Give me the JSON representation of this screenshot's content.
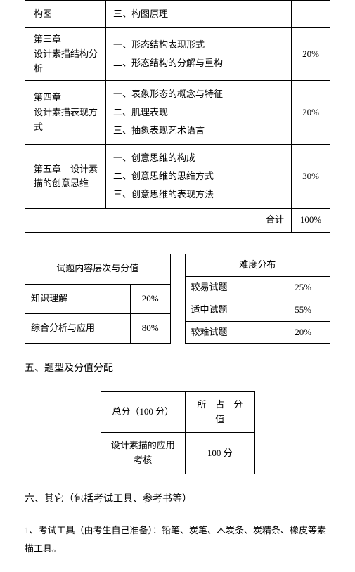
{
  "chapterTable": {
    "rows": [
      {
        "chapter": "构图",
        "content": "三、构图原理",
        "pct": ""
      },
      {
        "chapter": "第三章\n设计素描结构分析",
        "content": "一、形态结构表现形式\n二、形态结构的分解与重构",
        "pct": "20%"
      },
      {
        "chapter": "第四章\n设计素描表现方式",
        "content": "一、表象形态的概念与特征\n二、肌理表现\n三、抽象表现艺术语言",
        "pct": "20%"
      },
      {
        "chapter": "第五章　设计素描的创意思维",
        "content": "一、创意思维的构成\n二、创意思维的思维方式\n三、创意思维的表现方法",
        "pct": "30%"
      }
    ],
    "totalLabel": "合计",
    "totalValue": "100%"
  },
  "levelTable": {
    "header": "试题内容层次与分值",
    "rows": [
      {
        "label": "知识理解",
        "value": "20%"
      },
      {
        "label": "综合分析与应用",
        "value": "80%"
      }
    ]
  },
  "diffTable": {
    "header": "难度分布",
    "rows": [
      {
        "label": "较易试题",
        "value": "25%"
      },
      {
        "label": "适中试题",
        "value": "55%"
      },
      {
        "label": "较难试题",
        "value": "20%"
      }
    ]
  },
  "section5": "五、题型及分值分配",
  "scoreTable": {
    "h1": "总分（100 分）",
    "h2": "所　占　分　值",
    "rowLabel": "设计素描的应用考核",
    "rowValue": "100 分"
  },
  "section6": "六、其它（包括考试工具、参考书等）",
  "bodyText": "1、考试工具（由考生自己准备）：铅笔、炭笔、木炭条、炭精条、橡皮等素描工具。"
}
